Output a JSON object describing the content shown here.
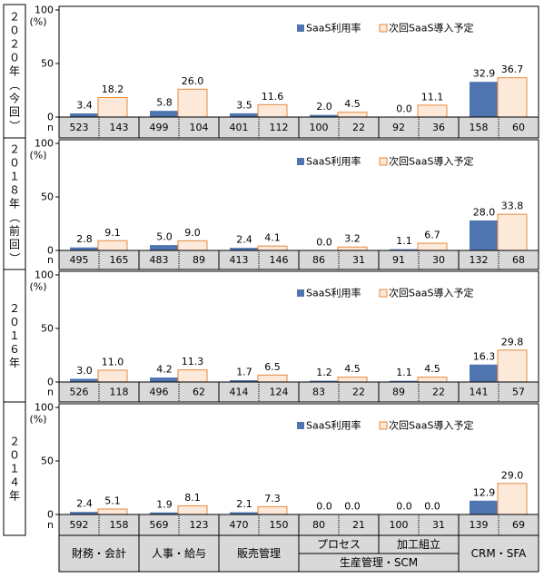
{
  "legend": {
    "usage": "SaaS利用率",
    "plan": "次回SaaS導入予定"
  },
  "n_label": "n",
  "colors": {
    "usage": "#4f76b0",
    "plan": "#fde9d9",
    "plan_border": "#e8883a",
    "n_row_bg": "#d9d9d9"
  },
  "categories": [
    "財務・会計",
    "人事・給与",
    "販売管理",
    "プロセス",
    "加工組立",
    "CRM・SFA"
  ],
  "category_group": "生産管理・SCM",
  "chart_data": [
    {
      "type": "bar",
      "period": "２０２０年（今回）",
      "ylim": [
        0,
        100
      ],
      "yticks": [
        0,
        50,
        100
      ],
      "yunit": "(%)",
      "categories": [
        "財務・会計",
        "人事・給与",
        "販売管理",
        "プロセス",
        "加工組立",
        "CRM・SFA"
      ],
      "series": [
        {
          "name": "SaaS利用率",
          "values": [
            3.4,
            5.8,
            3.5,
            2.0,
            0.0,
            32.9
          ],
          "labels": [
            "3.4",
            "5.8",
            "3.5",
            "2.0",
            "0.0",
            "32.9"
          ]
        },
        {
          "name": "次回SaaS導入予定",
          "values": [
            18.2,
            26.0,
            11.6,
            4.5,
            11.1,
            36.7
          ],
          "labels": [
            "18.2",
            "26.0",
            "11.6",
            "4.5",
            "11.1",
            "36.7"
          ]
        }
      ],
      "n": [
        [
          "523",
          "143"
        ],
        [
          "499",
          "104"
        ],
        [
          "401",
          "112"
        ],
        [
          "100",
          "22"
        ],
        [
          "92",
          "36"
        ],
        [
          "158",
          "60"
        ]
      ]
    },
    {
      "type": "bar",
      "period": "２０１８年（前回）",
      "ylim": [
        0,
        100
      ],
      "yticks": [
        0,
        50,
        100
      ],
      "yunit": "(%)",
      "categories": [
        "財務・会計",
        "人事・給与",
        "販売管理",
        "プロセス",
        "加工組立",
        "CRM・SFA"
      ],
      "series": [
        {
          "name": "SaaS利用率",
          "values": [
            2.8,
            5.0,
            2.4,
            0.0,
            1.1,
            28.0
          ],
          "labels": [
            "2.8",
            "5.0",
            "2.4",
            "0.0",
            "1.1",
            "28.0"
          ]
        },
        {
          "name": "次回SaaS導入予定",
          "values": [
            9.1,
            9.0,
            4.1,
            3.2,
            6.7,
            33.8
          ],
          "labels": [
            "9.1",
            "9.0",
            "4.1",
            "3.2",
            "6.7",
            "33.8"
          ]
        }
      ],
      "n": [
        [
          "495",
          "165"
        ],
        [
          "483",
          "89"
        ],
        [
          "413",
          "146"
        ],
        [
          "86",
          "31"
        ],
        [
          "91",
          "30"
        ],
        [
          "132",
          "68"
        ]
      ]
    },
    {
      "type": "bar",
      "period": "２０１６年",
      "ylim": [
        0,
        100
      ],
      "yticks": [
        0,
        50,
        100
      ],
      "yunit": "(%)",
      "categories": [
        "財務・会計",
        "人事・給与",
        "販売管理",
        "プロセス",
        "加工組立",
        "CRM・SFA"
      ],
      "series": [
        {
          "name": "SaaS利用率",
          "values": [
            3.0,
            4.2,
            1.7,
            1.2,
            1.1,
            16.3
          ],
          "labels": [
            "3.0",
            "4.2",
            "1.7",
            "1.2",
            "1.1",
            "16.3"
          ]
        },
        {
          "name": "次回SaaS導入予定",
          "values": [
            11.0,
            11.3,
            6.5,
            4.5,
            4.5,
            29.8
          ],
          "labels": [
            "11.0",
            "11.3",
            "6.5",
            "4.5",
            "4.5",
            "29.8"
          ]
        }
      ],
      "n": [
        [
          "526",
          "118"
        ],
        [
          "496",
          "62"
        ],
        [
          "414",
          "124"
        ],
        [
          "83",
          "22"
        ],
        [
          "89",
          "22"
        ],
        [
          "141",
          "57"
        ]
      ]
    },
    {
      "type": "bar",
      "period": "２０１４年",
      "ylim": [
        0,
        100
      ],
      "yticks": [
        0,
        50,
        100
      ],
      "yunit": "(%)",
      "categories": [
        "財務・会計",
        "人事・給与",
        "販売管理",
        "プロセス",
        "加工組立",
        "CRM・SFA"
      ],
      "series": [
        {
          "name": "SaaS利用率",
          "values": [
            2.4,
            1.9,
            2.1,
            0.0,
            0.0,
            12.9
          ],
          "labels": [
            "2.4",
            "1.9",
            "2.1",
            "0.0",
            "0.0",
            "12.9"
          ]
        },
        {
          "name": "次回SaaS導入予定",
          "values": [
            5.1,
            8.1,
            7.3,
            0.0,
            0.0,
            29.0
          ],
          "labels": [
            "5.1",
            "8.1",
            "7.3",
            "0.0",
            "0.0",
            "29.0"
          ]
        }
      ],
      "n": [
        [
          "592",
          "158"
        ],
        [
          "569",
          "123"
        ],
        [
          "470",
          "150"
        ],
        [
          "80",
          "21"
        ],
        [
          "100",
          "31"
        ],
        [
          "139",
          "69"
        ]
      ]
    }
  ]
}
